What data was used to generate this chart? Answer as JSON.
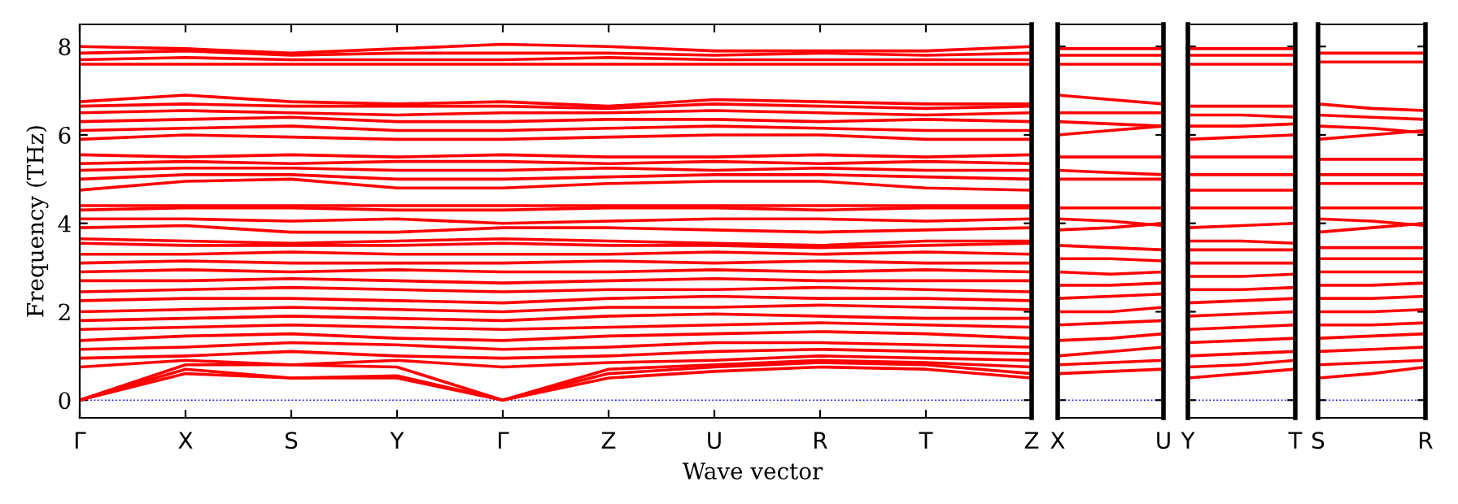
{
  "chart_data": [
    {
      "type": "line",
      "ylabel": "Frequency (THz)",
      "xlabel": "Wave vector",
      "categories": [
        "Γ",
        "X",
        "S",
        "Y",
        "Γ",
        "Z",
        "U",
        "R",
        "T",
        "Z"
      ],
      "ylim": [
        -0.4,
        8.5
      ],
      "yticks": [
        0,
        2,
        4,
        6,
        8
      ],
      "grid": false,
      "legend": false,
      "line_style": "solid",
      "marker": "none",
      "ref_lines": [
        {
          "axis": "y",
          "value": 0,
          "color": "#0000ff",
          "line_style": "dotted"
        }
      ],
      "series": [
        {
          "color": "#ff0000",
          "values": [
            0,
            0.6,
            0.5,
            0.5,
            0,
            0.5,
            0.65,
            0.75,
            0.7,
            0.5
          ]
        },
        {
          "color": "#ff0000",
          "values": [
            0,
            0.7,
            0.5,
            0.55,
            0,
            0.6,
            0.75,
            0.85,
            0.8,
            0.6
          ]
        },
        {
          "color": "#ff0000",
          "values": [
            0,
            0.8,
            0.8,
            0.75,
            0,
            0.7,
            0.8,
            0.9,
            0.85,
            0.75
          ]
        },
        {
          "color": "#ff0000",
          "values": [
            0.75,
            0.9,
            0.8,
            0.9,
            0.75,
            0.85,
            0.9,
            1.0,
            0.95,
            0.9
          ]
        },
        {
          "color": "#ff0000",
          "values": [
            0.95,
            1.0,
            1.1,
            1.0,
            0.95,
            1.0,
            1.1,
            1.15,
            1.1,
            1.05
          ]
        },
        {
          "color": "#ff0000",
          "values": [
            1.15,
            1.2,
            1.3,
            1.25,
            1.15,
            1.2,
            1.3,
            1.3,
            1.25,
            1.2
          ]
        },
        {
          "color": "#ff0000",
          "values": [
            1.35,
            1.45,
            1.5,
            1.4,
            1.35,
            1.45,
            1.5,
            1.55,
            1.5,
            1.4
          ]
        },
        {
          "color": "#ff0000",
          "values": [
            1.6,
            1.65,
            1.7,
            1.65,
            1.6,
            1.65,
            1.7,
            1.75,
            1.7,
            1.65
          ]
        },
        {
          "color": "#ff0000",
          "values": [
            1.8,
            1.85,
            1.9,
            1.85,
            1.8,
            1.9,
            1.95,
            1.9,
            1.85,
            1.85
          ]
        },
        {
          "color": "#ff0000",
          "values": [
            2.0,
            2.05,
            2.1,
            2.05,
            2.0,
            2.1,
            2.1,
            2.15,
            2.1,
            2.05
          ]
        },
        {
          "color": "#ff0000",
          "values": [
            2.25,
            2.3,
            2.3,
            2.25,
            2.2,
            2.3,
            2.35,
            2.3,
            2.3,
            2.25
          ]
        },
        {
          "color": "#ff0000",
          "values": [
            2.45,
            2.5,
            2.55,
            2.5,
            2.45,
            2.5,
            2.5,
            2.55,
            2.5,
            2.45
          ]
        },
        {
          "color": "#ff0000",
          "values": [
            2.7,
            2.7,
            2.75,
            2.7,
            2.65,
            2.7,
            2.75,
            2.7,
            2.7,
            2.7
          ]
        },
        {
          "color": "#ff0000",
          "values": [
            2.9,
            2.95,
            2.9,
            2.95,
            2.9,
            2.9,
            2.95,
            2.9,
            2.95,
            2.9
          ]
        },
        {
          "color": "#ff0000",
          "values": [
            3.1,
            3.15,
            3.1,
            3.1,
            3.1,
            3.15,
            3.1,
            3.15,
            3.1,
            3.1
          ]
        },
        {
          "color": "#ff0000",
          "values": [
            3.3,
            3.3,
            3.35,
            3.3,
            3.3,
            3.3,
            3.35,
            3.3,
            3.35,
            3.3
          ]
        },
        {
          "color": "#ff0000",
          "values": [
            3.55,
            3.5,
            3.5,
            3.5,
            3.55,
            3.5,
            3.5,
            3.45,
            3.5,
            3.55
          ]
        },
        {
          "color": "#ff0000",
          "values": [
            3.65,
            3.6,
            3.55,
            3.6,
            3.65,
            3.6,
            3.55,
            3.5,
            3.6,
            3.6
          ]
        },
        {
          "color": "#ff0000",
          "values": [
            3.9,
            3.95,
            3.8,
            3.8,
            3.9,
            3.9,
            3.85,
            3.8,
            3.85,
            3.9
          ]
        },
        {
          "color": "#ff0000",
          "values": [
            4.1,
            4.1,
            4.05,
            4.1,
            4.0,
            4.05,
            4.1,
            4.1,
            4.05,
            4.1
          ]
        },
        {
          "color": "#ff0000",
          "values": [
            4.3,
            4.35,
            4.35,
            4.3,
            4.3,
            4.35,
            4.35,
            4.3,
            4.35,
            4.35
          ]
        },
        {
          "color": "#ff0000",
          "values": [
            4.4,
            4.4,
            4.4,
            4.4,
            4.4,
            4.4,
            4.4,
            4.4,
            4.4,
            4.4
          ]
        },
        {
          "color": "#ff0000",
          "values": [
            4.75,
            4.95,
            5.0,
            4.8,
            4.8,
            4.9,
            4.95,
            4.95,
            4.8,
            4.75
          ]
        },
        {
          "color": "#ff0000",
          "values": [
            5.0,
            5.1,
            5.1,
            5.0,
            5.0,
            5.05,
            5.1,
            5.1,
            5.05,
            5.0
          ]
        },
        {
          "color": "#ff0000",
          "values": [
            5.2,
            5.25,
            5.25,
            5.2,
            5.2,
            5.25,
            5.2,
            5.25,
            5.2,
            5.2
          ]
        },
        {
          "color": "#ff0000",
          "values": [
            5.35,
            5.4,
            5.35,
            5.4,
            5.4,
            5.35,
            5.4,
            5.35,
            5.4,
            5.35
          ]
        },
        {
          "color": "#ff0000",
          "values": [
            5.55,
            5.5,
            5.55,
            5.5,
            5.55,
            5.5,
            5.5,
            5.55,
            5.5,
            5.55
          ]
        },
        {
          "color": "#ff0000",
          "values": [
            5.9,
            6.0,
            5.95,
            5.9,
            5.9,
            5.95,
            6.0,
            6.0,
            5.9,
            5.9
          ]
        },
        {
          "color": "#ff0000",
          "values": [
            6.1,
            6.15,
            6.2,
            6.1,
            6.1,
            6.15,
            6.2,
            6.15,
            6.1,
            6.1
          ]
        },
        {
          "color": "#ff0000",
          "values": [
            6.3,
            6.35,
            6.4,
            6.3,
            6.3,
            6.35,
            6.35,
            6.3,
            6.35,
            6.3
          ]
        },
        {
          "color": "#ff0000",
          "values": [
            6.5,
            6.55,
            6.5,
            6.45,
            6.5,
            6.5,
            6.55,
            6.5,
            6.45,
            6.5
          ]
        },
        {
          "color": "#ff0000",
          "values": [
            6.65,
            6.7,
            6.65,
            6.65,
            6.65,
            6.6,
            6.7,
            6.65,
            6.6,
            6.65
          ]
        },
        {
          "color": "#ff0000",
          "values": [
            6.75,
            6.9,
            6.75,
            6.7,
            6.75,
            6.65,
            6.8,
            6.75,
            6.7,
            6.7
          ]
        },
        {
          "color": "#ff0000",
          "values": [
            7.6,
            7.6,
            7.6,
            7.6,
            7.6,
            7.6,
            7.6,
            7.6,
            7.6,
            7.6
          ]
        },
        {
          "color": "#ff0000",
          "values": [
            7.7,
            7.75,
            7.7,
            7.7,
            7.7,
            7.75,
            7.7,
            7.7,
            7.7,
            7.7
          ]
        },
        {
          "color": "#ff0000",
          "values": [
            7.85,
            7.9,
            7.8,
            7.85,
            7.85,
            7.85,
            7.8,
            7.85,
            7.8,
            7.85
          ]
        },
        {
          "color": "#ff0000",
          "values": [
            8.0,
            7.95,
            7.85,
            7.95,
            8.05,
            8.0,
            7.9,
            7.9,
            7.9,
            8.0
          ]
        }
      ]
    },
    {
      "type": "line",
      "categories": [
        "X",
        null,
        "U"
      ],
      "ylim": [
        -0.4,
        8.5
      ],
      "yticks": [
        0,
        2,
        4,
        6,
        8
      ],
      "tick_labels": "x",
      "grid": false,
      "legend": false,
      "line_style": "solid",
      "marker": "none",
      "ref_lines": [
        {
          "axis": "y",
          "value": 0,
          "color": "#0000ff",
          "line_style": "dotted"
        }
      ],
      "series": [
        {
          "color": "#ff0000",
          "values": [
            0.6,
            0.65,
            0.7
          ]
        },
        {
          "color": "#ff0000",
          "values": [
            0.8,
            0.85,
            0.9
          ]
        },
        {
          "color": "#ff0000",
          "values": [
            1.0,
            1.1,
            1.2
          ]
        },
        {
          "color": "#ff0000",
          "values": [
            1.35,
            1.4,
            1.5
          ]
        },
        {
          "color": "#ff0000",
          "values": [
            1.7,
            1.75,
            1.8
          ]
        },
        {
          "color": "#ff0000",
          "values": [
            2.0,
            2.0,
            2.1
          ]
        },
        {
          "color": "#ff0000",
          "values": [
            2.3,
            2.35,
            2.4
          ]
        },
        {
          "color": "#ff0000",
          "values": [
            2.6,
            2.6,
            2.65
          ]
        },
        {
          "color": "#ff0000",
          "values": [
            2.9,
            2.85,
            2.9
          ]
        },
        {
          "color": "#ff0000",
          "values": [
            3.2,
            3.2,
            3.15
          ]
        },
        {
          "color": "#ff0000",
          "values": [
            3.5,
            3.45,
            3.4
          ]
        },
        {
          "color": "#ff0000",
          "values": [
            3.85,
            3.9,
            4.0
          ]
        },
        {
          "color": "#ff0000",
          "values": [
            4.1,
            4.05,
            3.95
          ]
        },
        {
          "color": "#ff0000",
          "values": [
            4.35,
            4.35,
            4.35
          ]
        },
        {
          "color": "#ff0000",
          "values": [
            5.0,
            5.0,
            5.0
          ]
        },
        {
          "color": "#ff0000",
          "values": [
            5.2,
            5.15,
            5.1
          ]
        },
        {
          "color": "#ff0000",
          "values": [
            5.5,
            5.5,
            5.5
          ]
        },
        {
          "color": "#ff0000",
          "values": [
            6.0,
            6.1,
            6.2
          ]
        },
        {
          "color": "#ff0000",
          "values": [
            6.3,
            6.25,
            6.2
          ]
        },
        {
          "color": "#ff0000",
          "values": [
            6.5,
            6.5,
            6.5
          ]
        },
        {
          "color": "#ff0000",
          "values": [
            6.9,
            6.8,
            6.7
          ]
        },
        {
          "color": "#ff0000",
          "values": [
            7.6,
            7.6,
            7.6
          ]
        },
        {
          "color": "#ff0000",
          "values": [
            7.8,
            7.8,
            7.8
          ]
        },
        {
          "color": "#ff0000",
          "values": [
            7.95,
            7.95,
            7.95
          ]
        }
      ]
    },
    {
      "type": "line",
      "categories": [
        "Y",
        null,
        "T"
      ],
      "ylim": [
        -0.4,
        8.5
      ],
      "yticks": [
        0,
        2,
        4,
        6,
        8
      ],
      "tick_labels": "x",
      "grid": false,
      "legend": false,
      "line_style": "solid",
      "marker": "none",
      "ref_lines": [
        {
          "axis": "y",
          "value": 0,
          "color": "#0000ff",
          "line_style": "dotted"
        }
      ],
      "series": [
        {
          "color": "#ff0000",
          "values": [
            0.5,
            0.6,
            0.7
          ]
        },
        {
          "color": "#ff0000",
          "values": [
            0.75,
            0.8,
            0.9
          ]
        },
        {
          "color": "#ff0000",
          "values": [
            1.0,
            1.05,
            1.1
          ]
        },
        {
          "color": "#ff0000",
          "values": [
            1.3,
            1.35,
            1.4
          ]
        },
        {
          "color": "#ff0000",
          "values": [
            1.6,
            1.65,
            1.7
          ]
        },
        {
          "color": "#ff0000",
          "values": [
            1.9,
            1.95,
            2.0
          ]
        },
        {
          "color": "#ff0000",
          "values": [
            2.2,
            2.25,
            2.3
          ]
        },
        {
          "color": "#ff0000",
          "values": [
            2.5,
            2.5,
            2.55
          ]
        },
        {
          "color": "#ff0000",
          "values": [
            2.8,
            2.8,
            2.85
          ]
        },
        {
          "color": "#ff0000",
          "values": [
            3.1,
            3.1,
            3.1
          ]
        },
        {
          "color": "#ff0000",
          "values": [
            3.4,
            3.4,
            3.4
          ]
        },
        {
          "color": "#ff0000",
          "values": [
            3.6,
            3.6,
            3.55
          ]
        },
        {
          "color": "#ff0000",
          "values": [
            3.9,
            3.95,
            4.0
          ]
        },
        {
          "color": "#ff0000",
          "values": [
            4.35,
            4.35,
            4.35
          ]
        },
        {
          "color": "#ff0000",
          "values": [
            4.75,
            4.75,
            4.75
          ]
        },
        {
          "color": "#ff0000",
          "values": [
            5.1,
            5.1,
            5.1
          ]
        },
        {
          "color": "#ff0000",
          "values": [
            5.5,
            5.5,
            5.5
          ]
        },
        {
          "color": "#ff0000",
          "values": [
            5.9,
            5.95,
            6.0
          ]
        },
        {
          "color": "#ff0000",
          "values": [
            6.2,
            6.2,
            6.25
          ]
        },
        {
          "color": "#ff0000",
          "values": [
            6.45,
            6.45,
            6.4
          ]
        },
        {
          "color": "#ff0000",
          "values": [
            6.65,
            6.65,
            6.65
          ]
        },
        {
          "color": "#ff0000",
          "values": [
            7.6,
            7.6,
            7.6
          ]
        },
        {
          "color": "#ff0000",
          "values": [
            7.8,
            7.8,
            7.8
          ]
        },
        {
          "color": "#ff0000",
          "values": [
            7.95,
            7.95,
            7.95
          ]
        }
      ]
    },
    {
      "type": "line",
      "categories": [
        "S",
        null,
        "R"
      ],
      "ylim": [
        -0.4,
        8.5
      ],
      "yticks": [
        0,
        2,
        4,
        6,
        8
      ],
      "tick_labels": "x",
      "grid": false,
      "legend": false,
      "line_style": "solid",
      "marker": "none",
      "ref_lines": [
        {
          "axis": "y",
          "value": 0,
          "color": "#0000ff",
          "line_style": "dotted"
        }
      ],
      "series": [
        {
          "color": "#ff0000",
          "values": [
            0.5,
            0.6,
            0.75
          ]
        },
        {
          "color": "#ff0000",
          "values": [
            0.8,
            0.85,
            0.9
          ]
        },
        {
          "color": "#ff0000",
          "values": [
            1.1,
            1.15,
            1.2
          ]
        },
        {
          "color": "#ff0000",
          "values": [
            1.4,
            1.45,
            1.5
          ]
        },
        {
          "color": "#ff0000",
          "values": [
            1.7,
            1.7,
            1.75
          ]
        },
        {
          "color": "#ff0000",
          "values": [
            2.0,
            2.0,
            2.05
          ]
        },
        {
          "color": "#ff0000",
          "values": [
            2.3,
            2.3,
            2.35
          ]
        },
        {
          "color": "#ff0000",
          "values": [
            2.6,
            2.6,
            2.65
          ]
        },
        {
          "color": "#ff0000",
          "values": [
            2.9,
            2.9,
            2.9
          ]
        },
        {
          "color": "#ff0000",
          "values": [
            3.2,
            3.2,
            3.2
          ]
        },
        {
          "color": "#ff0000",
          "values": [
            3.45,
            3.45,
            3.45
          ]
        },
        {
          "color": "#ff0000",
          "values": [
            3.8,
            3.9,
            4.0
          ]
        },
        {
          "color": "#ff0000",
          "values": [
            4.1,
            4.05,
            3.95
          ]
        },
        {
          "color": "#ff0000",
          "values": [
            4.35,
            4.35,
            4.35
          ]
        },
        {
          "color": "#ff0000",
          "values": [
            4.9,
            4.9,
            4.9
          ]
        },
        {
          "color": "#ff0000",
          "values": [
            5.1,
            5.1,
            5.1
          ]
        },
        {
          "color": "#ff0000",
          "values": [
            5.45,
            5.45,
            5.45
          ]
        },
        {
          "color": "#ff0000",
          "values": [
            5.9,
            6.0,
            6.1
          ]
        },
        {
          "color": "#ff0000",
          "values": [
            6.2,
            6.15,
            6.05
          ]
        },
        {
          "color": "#ff0000",
          "values": [
            6.45,
            6.4,
            6.35
          ]
        },
        {
          "color": "#ff0000",
          "values": [
            6.7,
            6.6,
            6.55
          ]
        },
        {
          "color": "#ff0000",
          "values": [
            7.65,
            7.65,
            7.65
          ]
        },
        {
          "color": "#ff0000",
          "values": [
            7.85,
            7.85,
            7.85
          ]
        }
      ]
    }
  ]
}
